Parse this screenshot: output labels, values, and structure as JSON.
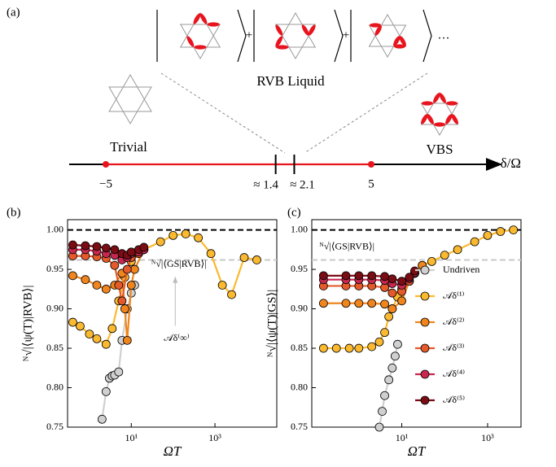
{
  "diagram": {
    "panel_label": "(a)",
    "title": "RVB Liquid",
    "ket_separators": [
      "+",
      "+",
      "···"
    ],
    "left_phase": "Trivial",
    "right_phase": "VBS",
    "axis_label": "δ/Ω",
    "points": [
      {
        "value": -5,
        "label": "−5"
      },
      {
        "value": 5,
        "label": "5"
      }
    ],
    "transitions": [
      {
        "value": 1.4,
        "label": "≈ 1.4"
      },
      {
        "value": 2.1,
        "label": "≈ 2.1"
      }
    ]
  },
  "chart_data": [
    {
      "type": "line",
      "panel_label": "(b)",
      "x_label": "ΩT",
      "y_label": "ᴺ√|⟨ψ(T)|RVB⟩|",
      "xscale": "log",
      "xlim": [
        0.3,
        30000
      ],
      "ylim": [
        0.75,
        1.013
      ],
      "xticks": [
        {
          "value": 10,
          "label": "10¹"
        },
        {
          "value": 1000,
          "label": "10³"
        }
      ],
      "yticks": [
        0.75,
        {
          "value": 0.8,
          "label": "0.80"
        },
        0.85,
        {
          "value": 0.9,
          "label": "0.90"
        },
        0.95,
        {
          "value": 1.0,
          "label": "1.00"
        }
      ],
      "hlines": [
        {
          "value": 1.0,
          "color": "#000000"
        },
        {
          "value": 0.962,
          "color": "#c8c8c8"
        }
      ],
      "annotations": [
        {
          "text": "ᴺ√|⟨GS|RVB⟩|",
          "x": 30,
          "y": 0.956
        },
        {
          "text": "𝒜δ⁽∞⁾",
          "x": 60,
          "y": 0.862
        }
      ],
      "series": [
        {
          "name": "Undriven",
          "color": "#d0d0d0",
          "x": [
            2,
            2.5,
            3,
            3.5,
            4,
            5,
            6,
            8,
            10,
            12
          ],
          "values": [
            0.76,
            0.795,
            0.812,
            0.815,
            0.816,
            0.82,
            0.86,
            0.9,
            0.92,
            0.93
          ]
        },
        {
          "name": "𝒜δ⁽¹⁾",
          "color": "#fbb930",
          "x": [
            0.4,
            0.6,
            1,
            1.5,
            2.5,
            3.5,
            5,
            7,
            10,
            20,
            50,
            100,
            200,
            400,
            800,
            1500,
            2500,
            5000,
            10000
          ],
          "values": [
            0.883,
            0.878,
            0.868,
            0.862,
            0.855,
            0.875,
            0.91,
            0.94,
            0.96,
            0.975,
            0.985,
            0.993,
            0.995,
            0.99,
            0.97,
            0.93,
            0.918,
            0.965,
            0.962
          ]
        },
        {
          "name": "𝒜δ⁽²⁾",
          "color": "#f0851e",
          "x": [
            0.4,
            0.8,
            1.5,
            2.5,
            4,
            6,
            7,
            8,
            10,
            12,
            20
          ],
          "values": [
            0.942,
            0.937,
            0.93,
            0.925,
            0.93,
            0.945,
            0.9,
            0.86,
            0.93,
            0.95,
            0.975
          ]
        },
        {
          "name": "𝒜δ⁽³⁾",
          "color": "#e55a2a",
          "x": [
            0.4,
            0.8,
            1.5,
            2.5,
            4,
            5,
            6,
            8,
            10,
            15,
            20
          ],
          "values": [
            0.967,
            0.967,
            0.966,
            0.964,
            0.955,
            0.93,
            0.91,
            0.95,
            0.965,
            0.97,
            0.975
          ]
        },
        {
          "name": "𝒜δ⁽⁴⁾",
          "color": "#c8284e",
          "x": [
            0.4,
            0.8,
            1.5,
            2.5,
            4,
            6,
            8,
            10,
            15,
            20
          ],
          "values": [
            0.975,
            0.975,
            0.973,
            0.97,
            0.968,
            0.962,
            0.965,
            0.97,
            0.972,
            0.975
          ]
        },
        {
          "name": "𝒜δ⁽⁵⁾",
          "color": "#7a0c14",
          "x": [
            0.4,
            0.8,
            1.5,
            2.5,
            4,
            6,
            8,
            10,
            15,
            20
          ],
          "values": [
            0.981,
            0.98,
            0.979,
            0.977,
            0.975,
            0.97,
            0.968,
            0.972,
            0.975,
            0.978
          ]
        }
      ]
    },
    {
      "type": "line",
      "panel_label": "(c)",
      "x_label": "ΩT",
      "y_label": "ᴺ√|⟨ψ(T)|GS⟩|",
      "xscale": "log",
      "xlim": [
        0.08,
        6000
      ],
      "ylim": [
        0.75,
        1.013
      ],
      "xticks": [
        {
          "value": 10,
          "label": "10¹"
        },
        {
          "value": 1000,
          "label": "10³"
        }
      ],
      "yticks": [
        0.75,
        {
          "value": 0.8,
          "label": "0.80"
        },
        0.85,
        {
          "value": 0.9,
          "label": "0.90"
        },
        0.95,
        {
          "value": 1.0,
          "label": "1.00"
        }
      ],
      "hlines": [
        {
          "value": 1.0,
          "color": "#000000"
        },
        {
          "value": 0.962,
          "color": "#c8c8c8"
        }
      ],
      "annotations": [
        {
          "text": "ᴺ√|⟨GS|RVB⟩|",
          "x": 0.12,
          "y": 0.978
        }
      ],
      "legend": "center right",
      "series": [
        {
          "name": "Undriven",
          "color": "#d0d0d0",
          "x": [
            3,
            3.5,
            4,
            5,
            6,
            7,
            8
          ],
          "values": [
            0.75,
            0.77,
            0.79,
            0.81,
            0.825,
            0.84,
            0.855
          ]
        },
        {
          "name": "𝒜δ⁽¹⁾",
          "color": "#fbb930",
          "x": [
            0.15,
            0.3,
            0.6,
            1,
            2,
            3,
            4,
            5,
            6,
            8,
            10,
            15,
            20,
            30,
            50,
            100,
            200,
            500,
            1000,
            2000,
            4000
          ],
          "values": [
            0.85,
            0.85,
            0.85,
            0.85,
            0.852,
            0.858,
            0.87,
            0.89,
            0.9,
            0.915,
            0.925,
            0.935,
            0.945,
            0.955,
            0.96,
            0.968,
            0.975,
            0.985,
            0.993,
            0.998,
            1.0
          ]
        },
        {
          "name": "𝒜δ⁽²⁾",
          "color": "#f0851e",
          "x": [
            0.15,
            0.5,
            1,
            2,
            4,
            6,
            10,
            15,
            20,
            30
          ],
          "values": [
            0.907,
            0.907,
            0.907,
            0.907,
            0.906,
            0.9,
            0.91,
            0.935,
            0.945,
            0.955
          ]
        },
        {
          "name": "𝒜δ⁽³⁾",
          "color": "#e55a2a",
          "x": [
            0.15,
            0.5,
            1,
            2,
            4,
            6,
            10,
            15,
            20
          ],
          "values": [
            0.929,
            0.929,
            0.929,
            0.929,
            0.927,
            0.92,
            0.922,
            0.935,
            0.945
          ]
        },
        {
          "name": "𝒜δ⁽⁴⁾",
          "color": "#c8284e",
          "x": [
            0.15,
            0.5,
            1,
            2,
            4,
            6,
            10,
            15,
            20
          ],
          "values": [
            0.937,
            0.937,
            0.937,
            0.937,
            0.936,
            0.932,
            0.93,
            0.938,
            0.946
          ]
        },
        {
          "name": "𝒜δ⁽⁵⁾",
          "color": "#7a0c14",
          "x": [
            0.15,
            0.5,
            1,
            2,
            4,
            6,
            10,
            15,
            20
          ],
          "values": [
            0.942,
            0.942,
            0.942,
            0.942,
            0.941,
            0.938,
            0.935,
            0.94,
            0.948
          ]
        }
      ]
    }
  ]
}
